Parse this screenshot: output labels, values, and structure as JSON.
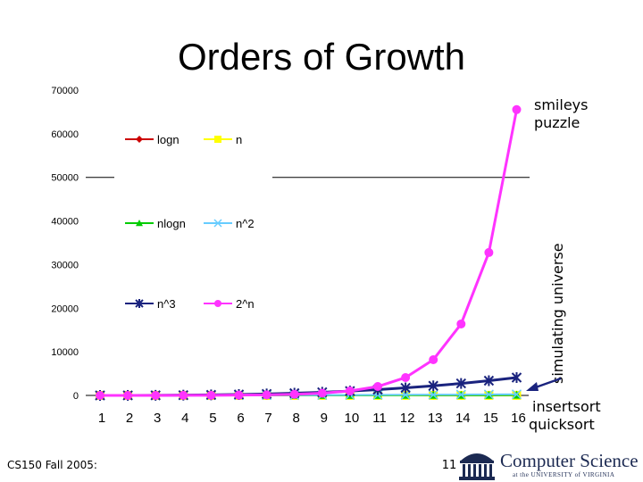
{
  "slide": {
    "title": "Orders of Growth",
    "footer_course": "CS150 Fall 2005:",
    "page_number": "11"
  },
  "logo": {
    "main": "Computer Science",
    "sub": "at the UNIVERSITY of VIRGINIA"
  },
  "annotations": {
    "top_line1": "smileys",
    "top_line2": "puzzle",
    "vertical": "simulating universe",
    "bottom_line1": "insertsort",
    "bottom_line2": "quicksort"
  },
  "colors": {
    "logn": "#cc0000",
    "n": "#ffff00",
    "nlogn": "#00cc00",
    "n2": "#66ccff",
    "n3": "#1a237e",
    "2n": "#ff33ff",
    "arrow": "#1a237e"
  },
  "chart_data": {
    "type": "line",
    "x": [
      1,
      2,
      3,
      4,
      5,
      6,
      7,
      8,
      9,
      10,
      11,
      12,
      13,
      14,
      15,
      16
    ],
    "ylim": [
      0,
      70000
    ],
    "yticks": [
      "0",
      "10000",
      "20000",
      "30000",
      "40000",
      "50000",
      "60000",
      "70000"
    ],
    "xticks": [
      "1",
      "2",
      "3",
      "4",
      "5",
      "6",
      "7",
      "8",
      "9",
      "10",
      "11",
      "12",
      "13",
      "14",
      "15",
      "16"
    ],
    "legend_placement": "top-left inside plot",
    "grid": "off",
    "series": [
      {
        "name": "logn",
        "marker": "diamond",
        "values": [
          0,
          1,
          1.6,
          2,
          2.3,
          2.6,
          2.8,
          3,
          3.2,
          3.3,
          3.5,
          3.6,
          3.7,
          3.8,
          3.9,
          4
        ]
      },
      {
        "name": "n",
        "marker": "square",
        "values": [
          1,
          2,
          3,
          4,
          5,
          6,
          7,
          8,
          9,
          10,
          11,
          12,
          13,
          14,
          15,
          16
        ]
      },
      {
        "name": "nlogn",
        "marker": "triangle",
        "values": [
          0,
          2,
          5,
          8,
          12,
          16,
          20,
          24,
          29,
          33,
          38,
          43,
          48,
          53,
          59,
          64
        ]
      },
      {
        "name": "n^2",
        "marker": "x",
        "values": [
          1,
          4,
          9,
          16,
          25,
          36,
          49,
          64,
          81,
          100,
          121,
          144,
          169,
          196,
          225,
          256
        ]
      },
      {
        "name": "n^3",
        "marker": "asterisk",
        "values": [
          1,
          8,
          27,
          64,
          125,
          216,
          343,
          512,
          729,
          1000,
          1331,
          1728,
          2197,
          2744,
          3375,
          4096
        ]
      },
      {
        "name": "2^n",
        "marker": "circle",
        "values": [
          2,
          4,
          8,
          16,
          32,
          64,
          128,
          256,
          512,
          1024,
          2048,
          4096,
          8192,
          16384,
          32768,
          65536
        ]
      }
    ]
  }
}
